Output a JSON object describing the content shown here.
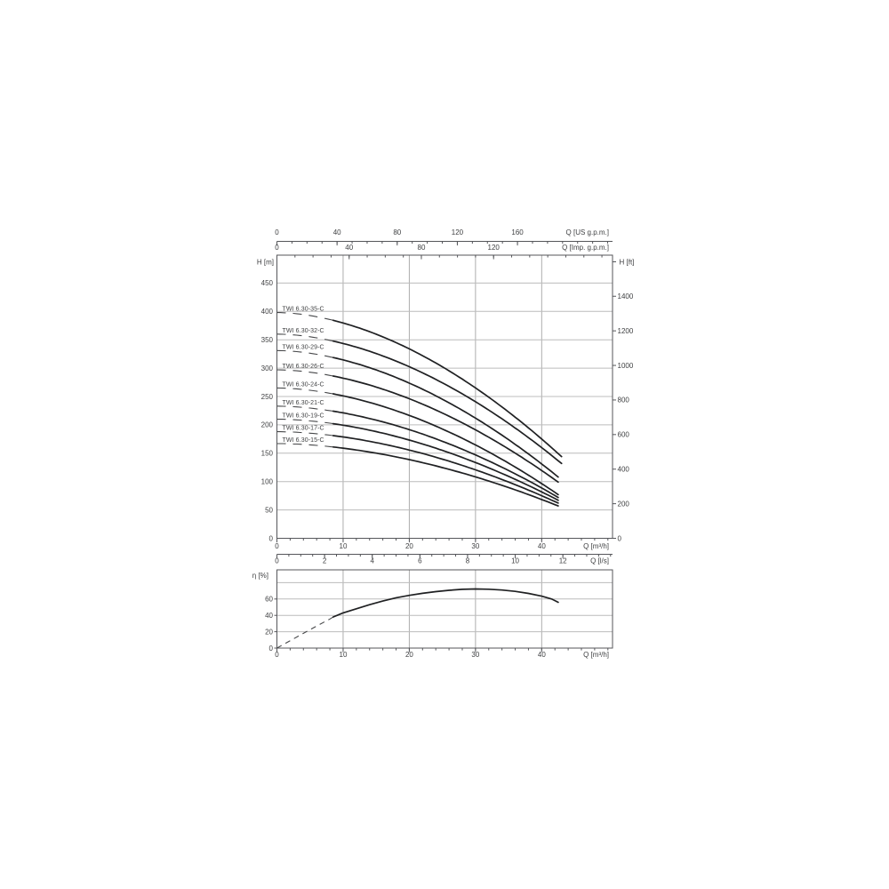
{
  "figure": {
    "background": "#ffffff",
    "text_color": "#3f4042",
    "frame_color": "#55565a",
    "grid_color": "#bcbcbc",
    "curve_color": "#1f2022",
    "dash_color": "#47484a"
  },
  "chart_data": [
    {
      "id": "head_flow_chart",
      "type": "line",
      "x_axes": [
        {
          "id": "us_gpm",
          "label": "Q [US g.p.m.]",
          "ticks": [
            0,
            40,
            80,
            120,
            160
          ],
          "minor_step": 10,
          "m3h_per_unit": 0.227125,
          "position": "top-detached"
        },
        {
          "id": "imp_gpm",
          "label": "Q [Imp. g.p.m.]",
          "ticks": [
            0,
            40,
            80,
            120
          ],
          "minor_step": 10,
          "m3h_per_unit": 0.272766,
          "position": "top-frame"
        },
        {
          "id": "m3h",
          "label": "Q [m³/h]",
          "ticks": [
            0,
            10,
            20,
            30,
            40
          ],
          "minor_step": 2,
          "m3h_per_unit": 1,
          "position": "bottom-frame",
          "max": 50.7
        },
        {
          "id": "l_s",
          "label": "Q [l/s]",
          "ticks": [
            0,
            2,
            4,
            6,
            8,
            10,
            12
          ],
          "minor_step": 0.5,
          "m3h_per_unit": 3.6,
          "position": "bottom-detached"
        }
      ],
      "y_axes": [
        {
          "id": "h_m",
          "label": "H [m]",
          "ticks": [
            0,
            50,
            100,
            150,
            200,
            250,
            300,
            350,
            400,
            450
          ],
          "max": 499,
          "side": "left"
        },
        {
          "id": "h_ft",
          "label": "H [ft]",
          "ticks": [
            0,
            200,
            400,
            600,
            800,
            1000,
            1200,
            1400
          ],
          "m_per_unit": 0.3048,
          "side": "right"
        }
      ],
      "grid_x_m3h": [
        10,
        20,
        30,
        40
      ],
      "grid_y_m": [
        50,
        100,
        150,
        200,
        250,
        300,
        350,
        400,
        450
      ],
      "curve_model": {
        "exponent": 1.8,
        "dashed_until_m3h": 8.5
      },
      "series": [
        {
          "label": "TWI 6.30-35-C",
          "shutoff_head_m": 398,
          "end_head_m": 144,
          "end_flow_m3h": 43,
          "label_head_m": 405
        },
        {
          "label": "TWI 6.30-32-C",
          "shutoff_head_m": 360,
          "end_head_m": 132,
          "end_flow_m3h": 43,
          "label_head_m": 367
        },
        {
          "label": "TWI 6.30-29-C",
          "shutoff_head_m": 331,
          "end_head_m": 108,
          "end_flow_m3h": 42.5,
          "label_head_m": 338
        },
        {
          "label": "TWI 6.30-26-C",
          "shutoff_head_m": 297,
          "end_head_m": 99,
          "end_flow_m3h": 42.5,
          "label_head_m": 304
        },
        {
          "label": "TWI 6.30-24-C",
          "shutoff_head_m": 265,
          "end_head_m": 77,
          "end_flow_m3h": 42.5,
          "label_head_m": 272
        },
        {
          "label": "TWI 6.30-21-C",
          "shutoff_head_m": 233,
          "end_head_m": 72,
          "end_flow_m3h": 42.5,
          "label_head_m": 240
        },
        {
          "label": "TWI 6.30-19-C",
          "shutoff_head_m": 210,
          "end_head_m": 67,
          "end_flow_m3h": 42.5,
          "label_head_m": 217
        },
        {
          "label": "TWI 6.30-17-C",
          "shutoff_head_m": 188,
          "end_head_m": 62,
          "end_flow_m3h": 42.5,
          "label_head_m": 195
        },
        {
          "label": "TWI 6.30-15-C",
          "shutoff_head_m": 167,
          "end_head_m": 57,
          "end_flow_m3h": 42.5,
          "label_head_m": 174
        }
      ]
    },
    {
      "id": "efficiency_chart",
      "type": "line",
      "x_axis": {
        "label": "Q [m³/h]",
        "ticks": [
          0,
          10,
          20,
          30,
          40
        ],
        "minor_step": 2,
        "max": 50.7
      },
      "y_axis": {
        "label": "η [%]",
        "ticks": [
          0,
          20,
          40,
          60
        ],
        "grid": [
          20,
          40,
          60,
          80
        ],
        "max": 95.7
      },
      "grid_x_m3h": [
        10,
        20,
        30,
        40
      ],
      "series": [
        {
          "name": "efficiency",
          "dashed_until_m3h": 8.5,
          "points": [
            [
              0,
              0
            ],
            [
              2,
              9
            ],
            [
              4,
              18
            ],
            [
              6,
              27
            ],
            [
              8,
              35.5
            ],
            [
              8.5,
              38
            ],
            [
              10,
              43
            ],
            [
              12,
              48
            ],
            [
              14,
              53
            ],
            [
              16,
              57.5
            ],
            [
              18,
              61.5
            ],
            [
              20,
              64.5
            ],
            [
              22,
              67
            ],
            [
              24,
              69
            ],
            [
              26,
              70.7
            ],
            [
              28,
              71.8
            ],
            [
              30,
              72.3
            ],
            [
              32,
              72
            ],
            [
              34,
              71
            ],
            [
              36,
              69.3
            ],
            [
              38,
              66.8
            ],
            [
              40,
              63.5
            ],
            [
              41.5,
              60
            ],
            [
              42.5,
              56
            ]
          ]
        }
      ]
    }
  ]
}
